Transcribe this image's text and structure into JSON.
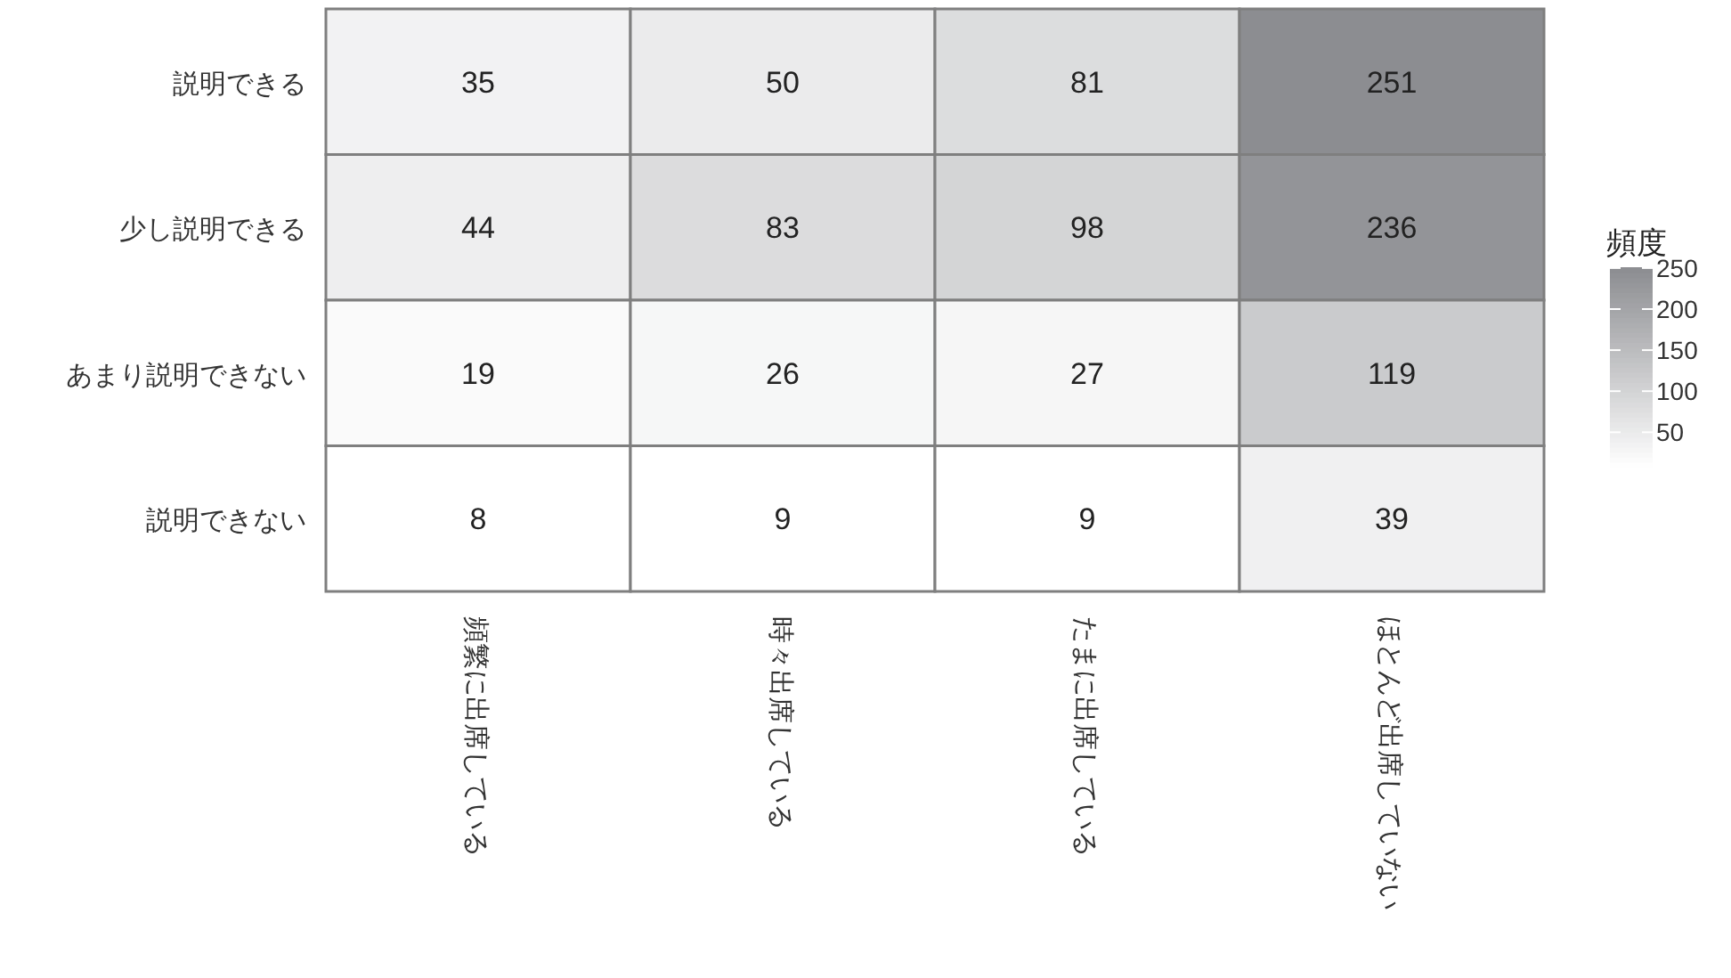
{
  "chart_data": {
    "type": "heatmap",
    "categories": [
      "頻繁に出席している",
      "時々出席している",
      "たまに出席している",
      "ほとんど出席していない"
    ],
    "y_categories": [
      "説明できる",
      "少し説明できる",
      "あまり説明できない",
      "説明できない"
    ],
    "cells": [
      [
        35,
        50,
        81,
        251
      ],
      [
        44,
        83,
        98,
        236
      ],
      [
        19,
        26,
        27,
        119
      ],
      [
        8,
        9,
        9,
        39
      ]
    ],
    "data_labels": true,
    "legend_title": "頻度",
    "clim": [
      8,
      251
    ],
    "cticks": [
      50,
      100,
      150,
      200,
      250
    ]
  }
}
